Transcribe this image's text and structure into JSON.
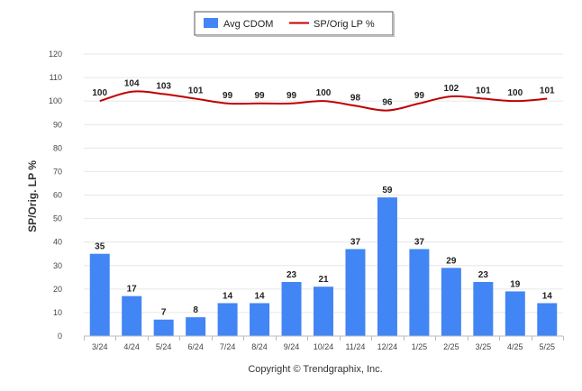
{
  "chart_data": {
    "type": "bar",
    "categories": [
      "3/24",
      "4/24",
      "5/24",
      "6/24",
      "7/24",
      "8/24",
      "9/24",
      "10/24",
      "11/24",
      "12/24",
      "1/25",
      "2/25",
      "3/25",
      "4/25",
      "5/25"
    ],
    "series": [
      {
        "name": "Avg CDOM",
        "type": "bar",
        "color": "#4285f4",
        "values": [
          35,
          17,
          7,
          8,
          14,
          14,
          23,
          21,
          37,
          59,
          37,
          29,
          23,
          19,
          14
        ]
      },
      {
        "name": "SP/Orig LP %",
        "type": "line",
        "color": "#c00000",
        "values": [
          100,
          104,
          103,
          101,
          99,
          99,
          99,
          100,
          98,
          96,
          99,
          102,
          101,
          100,
          101
        ]
      }
    ],
    "ylabel": "SP/Orig. LP %",
    "ylim": [
      0,
      120
    ],
    "yticks": [
      0,
      10,
      20,
      30,
      40,
      50,
      60,
      70,
      80,
      90,
      100,
      110,
      120
    ],
    "grid": true,
    "legend": "top-center",
    "footer": "Copyright © Trendgraphix, Inc."
  }
}
